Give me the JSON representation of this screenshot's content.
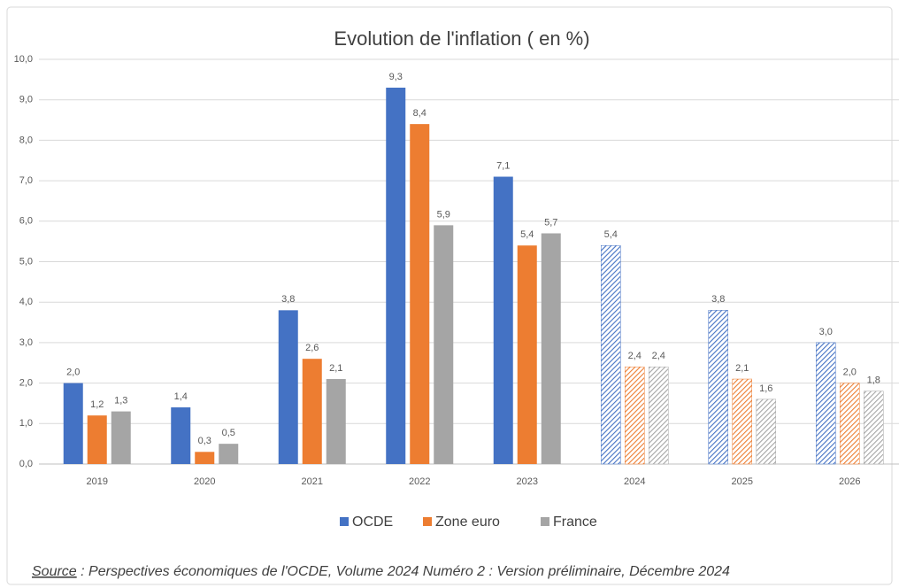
{
  "chart_data": {
    "type": "bar",
    "title": "Evolution de l'inflation ( en %)",
    "categories": [
      "2019",
      "2020",
      "2021",
      "2022",
      "2023",
      "2024",
      "2025",
      "2026"
    ],
    "hatched": [
      false,
      false,
      false,
      false,
      false,
      true,
      true,
      true
    ],
    "series": [
      {
        "name": "OCDE",
        "color": "#4472c4",
        "values": [
          2.0,
          1.4,
          3.8,
          9.3,
          7.1,
          5.4,
          3.8,
          3.0
        ],
        "value_labels": [
          "2,0",
          "1,4",
          "3,8",
          "9,3",
          "7,1",
          "5,4",
          "3,8",
          "3,0"
        ]
      },
      {
        "name": "Zone euro",
        "color": "#ed7d31",
        "values": [
          1.2,
          0.3,
          2.6,
          8.4,
          5.4,
          2.4,
          2.1,
          2.0
        ],
        "value_labels": [
          "1,2",
          "0,3",
          "2,6",
          "8,4",
          "5,4",
          "2,4",
          "2,1",
          "2,0"
        ]
      },
      {
        "name": "France",
        "color": "#a5a5a5",
        "values": [
          1.3,
          0.5,
          2.1,
          5.9,
          5.7,
          2.4,
          1.6,
          1.8
        ],
        "value_labels": [
          "1,3",
          "0,5",
          "2,1",
          "5,9",
          "5,7",
          "2,4",
          "1,6",
          "1,8"
        ]
      }
    ],
    "ylim": [
      0,
      10
    ],
    "yticks": [
      {
        "value": 0,
        "label": "0,0"
      },
      {
        "value": 1,
        "label": "1,0"
      },
      {
        "value": 2,
        "label": "2,0"
      },
      {
        "value": 3,
        "label": "3,0"
      },
      {
        "value": 4,
        "label": "4,0"
      },
      {
        "value": 5,
        "label": "5,0"
      },
      {
        "value": 6,
        "label": "6,0"
      },
      {
        "value": 7,
        "label": "7,0"
      },
      {
        "value": 8,
        "label": "8,0"
      },
      {
        "value": 9,
        "label": "9,0"
      },
      {
        "value": 10,
        "label": "10,0"
      }
    ],
    "grid": true,
    "legend": "bottom",
    "source": {
      "label": "Source",
      "text": " : Perspectives économiques de l'OCDE, Volume 2024 Numéro 2 : Version préliminaire, Décembre 2024"
    }
  }
}
